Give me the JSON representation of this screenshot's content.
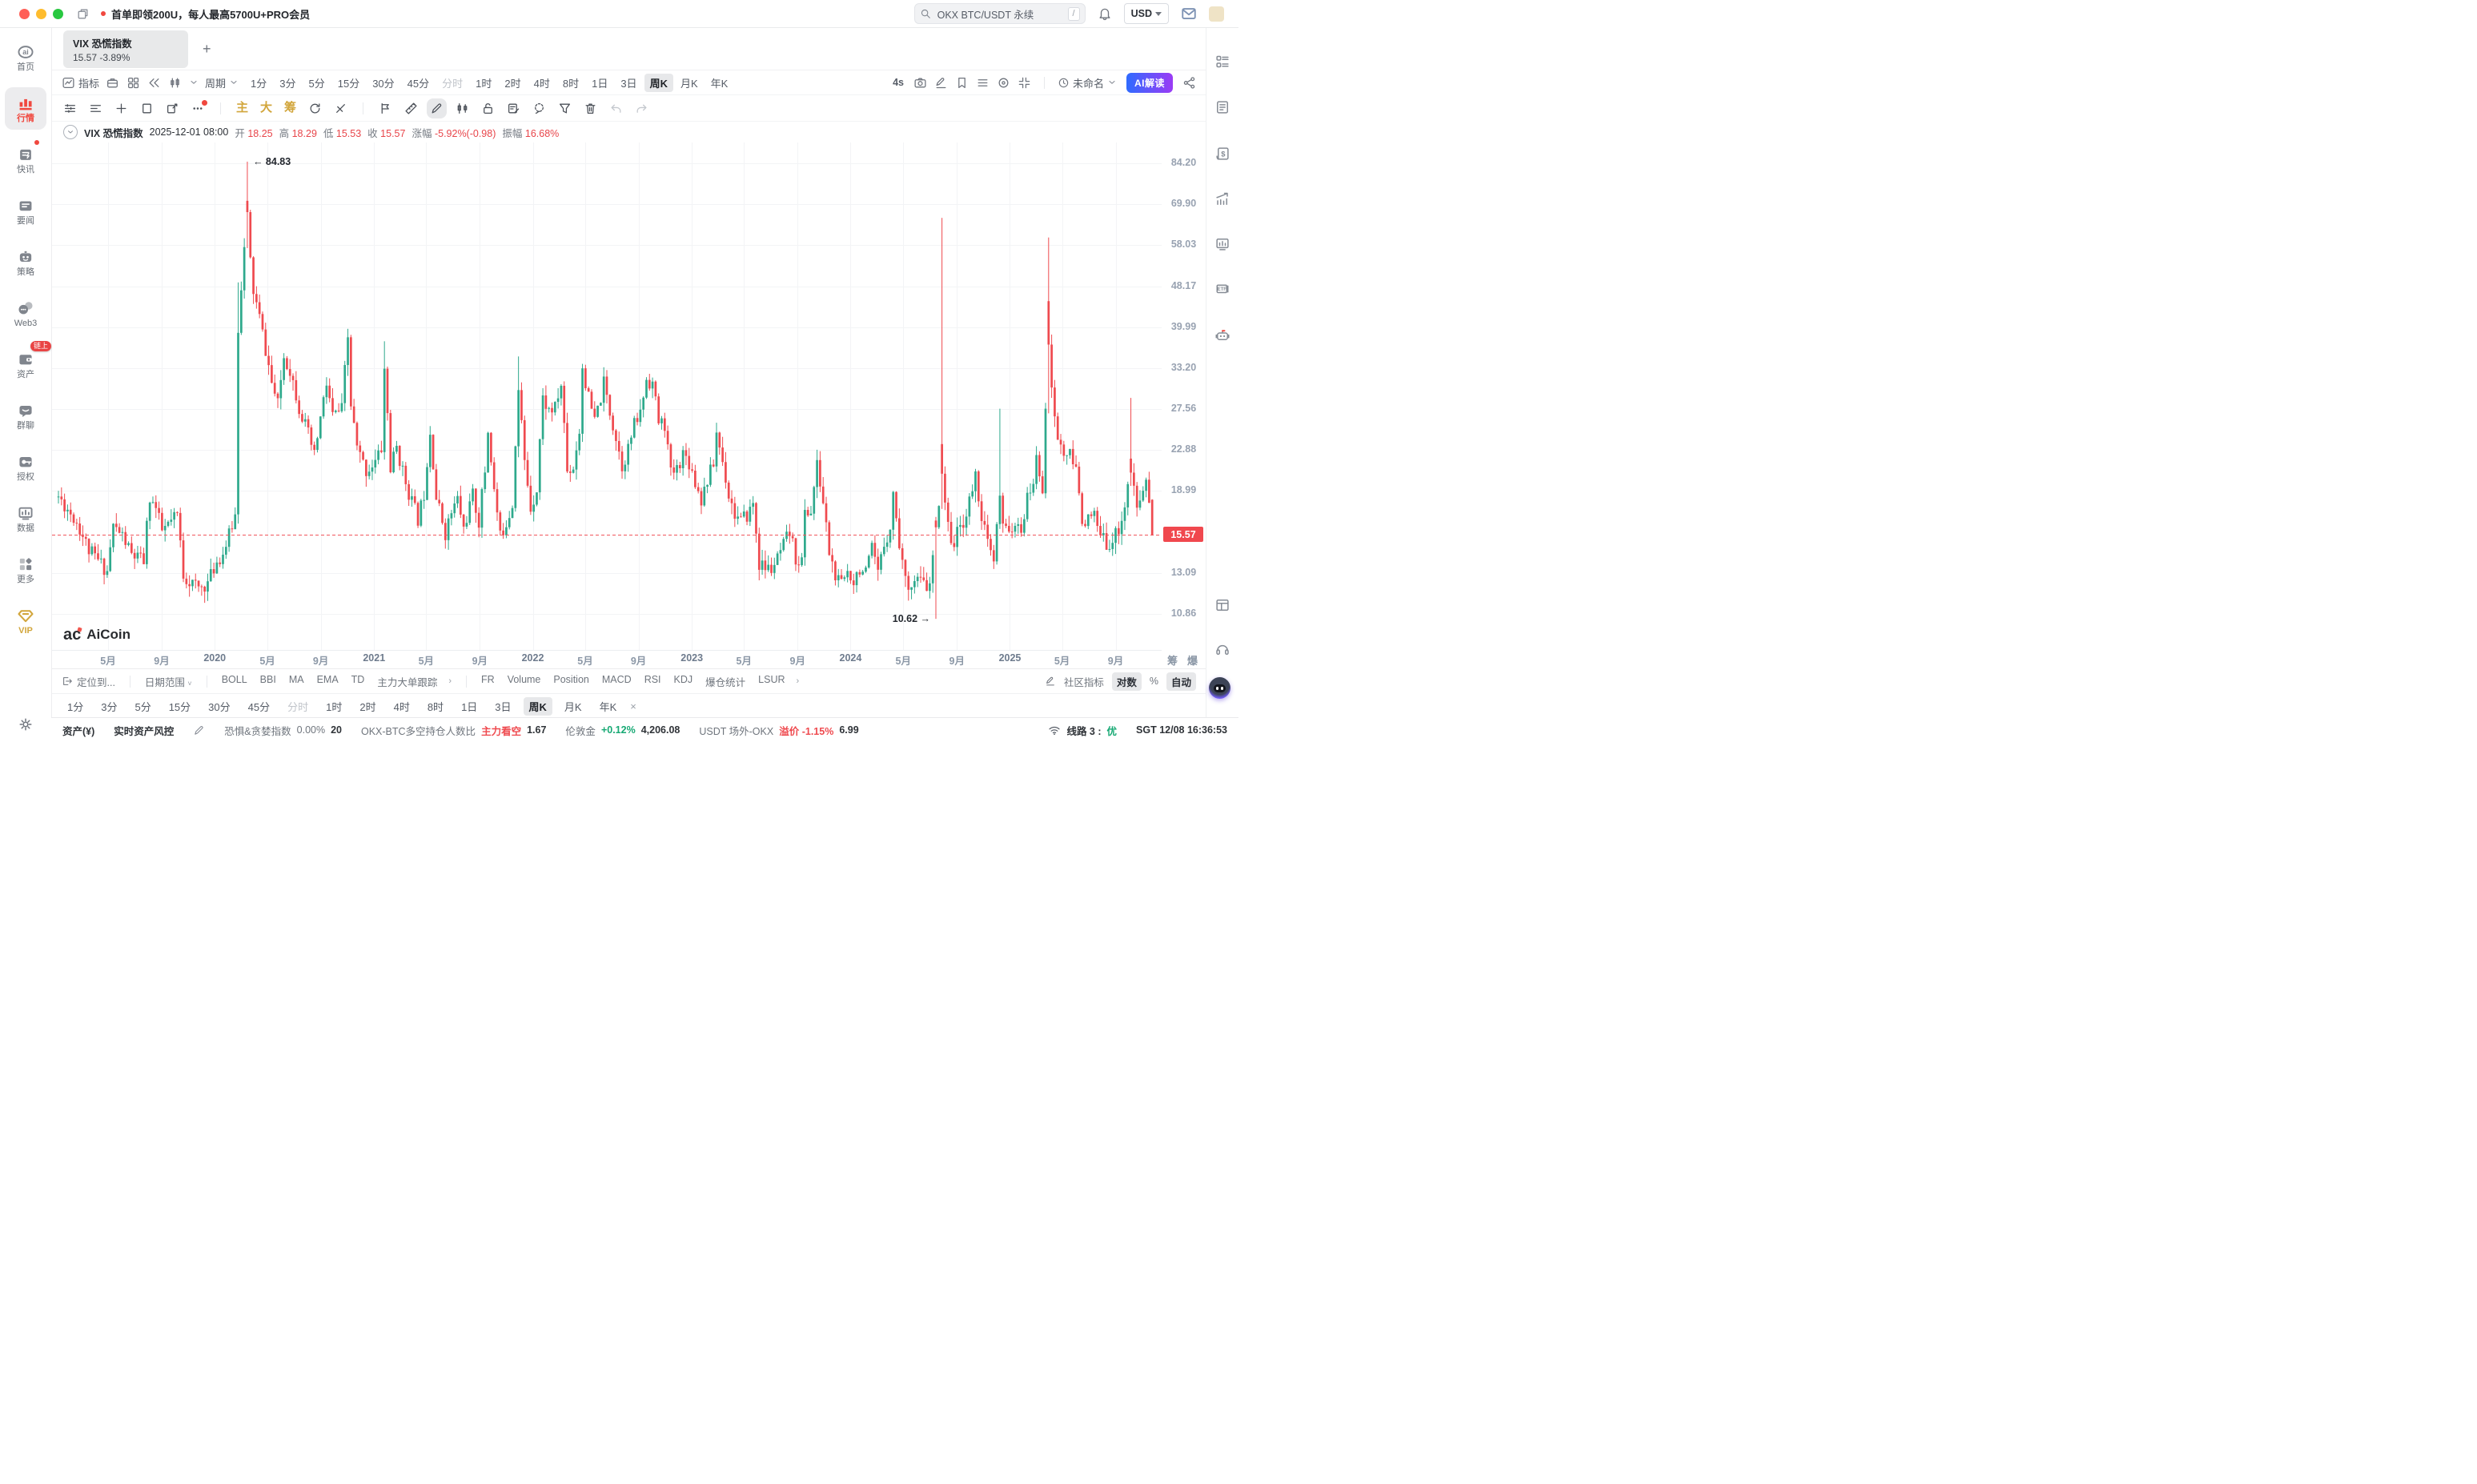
{
  "titlebar": {
    "promo": "首单即领200U，每人最高5700U+PRO会员",
    "search_value": "OKX BTC/USDT 永续",
    "search_shortcut": "/",
    "currency": "USD"
  },
  "sidebar": {
    "items": [
      {
        "label": "首页",
        "icon": "home-logo"
      },
      {
        "label": "行情",
        "icon": "market-bars",
        "active": true
      },
      {
        "label": "快讯",
        "icon": "flash-news",
        "dot": true
      },
      {
        "label": "要闻",
        "icon": "major-news"
      },
      {
        "label": "策略",
        "icon": "strategy-bot"
      },
      {
        "label": "Web3",
        "icon": "web3"
      },
      {
        "label": "资产",
        "icon": "wallet",
        "badge": "链上"
      },
      {
        "label": "群聊",
        "icon": "group-chat"
      },
      {
        "label": "授权",
        "icon": "auth-key"
      },
      {
        "label": "数据",
        "icon": "data-monitor"
      },
      {
        "label": "更多",
        "icon": "more-grid"
      },
      {
        "label": "VIP",
        "icon": "vip-diamond",
        "gold": true
      }
    ]
  },
  "tab": {
    "title": "VIX 恐慌指数",
    "price": "15.57",
    "change": "-3.89%"
  },
  "toolbar_top": {
    "indicator_label": "指标",
    "left_icons": [
      "briefcase",
      "layout",
      "rewind",
      "candle-style"
    ],
    "period_label": "周期",
    "periods": [
      "1分",
      "3分",
      "5分",
      "15分",
      "30分",
      "45分",
      "分时",
      "1时",
      "2时",
      "4时",
      "8时",
      "1日",
      "3日",
      "周K",
      "月K",
      "年K"
    ],
    "active_period": "周K",
    "disabled_period": "分时",
    "speed": "4s",
    "mid_icons": [
      "camera",
      "pencil-line",
      "tag",
      "list",
      "target",
      "shrink"
    ],
    "layout_name": "未命名",
    "ai_label": "AI解读"
  },
  "toolbar_draw": {
    "icons": [
      {
        "icon": "ma-lines"
      },
      {
        "icon": "ma-lines2"
      },
      {
        "icon": "plus"
      },
      {
        "icon": "rect-tool"
      },
      {
        "icon": "draw-edit"
      },
      {
        "icon": "dots",
        "red": true,
        "sep_after": true
      },
      {
        "text": "主"
      },
      {
        "text": "大"
      },
      {
        "text": "筹"
      },
      {
        "icon": "refresh-k"
      },
      {
        "icon": "strike",
        "sep_after": true
      },
      {
        "icon": "flag-mark"
      },
      {
        "icon": "ruler"
      },
      {
        "icon": "pencil",
        "active": true
      },
      {
        "icon": "candles-sm"
      },
      {
        "icon": "lock-open"
      },
      {
        "icon": "note-edit"
      },
      {
        "icon": "lasso"
      },
      {
        "icon": "funnel"
      },
      {
        "icon": "trash"
      },
      {
        "icon": "undo",
        "dim": true
      },
      {
        "icon": "redo",
        "dim": true
      }
    ]
  },
  "infoline": {
    "name": "VIX 恐慌指数",
    "time": "2025-12-01 08:00",
    "o_label": "开",
    "o": "18.25",
    "h_label": "高",
    "h": "18.29",
    "l_label": "低",
    "l": "15.53",
    "c_label": "收",
    "c": "15.57",
    "chg_label": "涨幅",
    "chg": "-5.92%(-0.98)",
    "amp_label": "振幅",
    "amp": "16.68%"
  },
  "chart_data": {
    "type": "candlestick",
    "symbol": "VIX 恐慌指数",
    "period": "周K",
    "scale": "log",
    "weeks": 360,
    "seed": 11,
    "up_color": "#2ea98c",
    "down_color": "#ef4a4f",
    "grid_color": "#f3f4f6",
    "price_line_color": "#f0565c",
    "current_price": 15.57,
    "current_price_label": "15.57",
    "y_ticks": [
      {
        "label": "84.20",
        "value": 84.2
      },
      {
        "label": "69.90",
        "value": 69.9
      },
      {
        "label": "58.03",
        "value": 58.03
      },
      {
        "label": "48.17",
        "value": 48.17
      },
      {
        "label": "39.99",
        "value": 39.99
      },
      {
        "label": "33.20",
        "value": 33.2
      },
      {
        "label": "27.56",
        "value": 27.56
      },
      {
        "label": "22.88",
        "value": 22.88
      },
      {
        "label": "18.99",
        "value": 18.99
      },
      {
        "label": "13.09",
        "value": 13.09
      },
      {
        "label": "10.86",
        "value": 10.86
      }
    ],
    "x_ticks": [
      {
        "label": "5月",
        "week": 16.3
      },
      {
        "label": "9月",
        "week": 33.9
      },
      {
        "label": "2020",
        "week": 51.3,
        "year": true
      },
      {
        "label": "5月",
        "week": 68.6
      },
      {
        "label": "9月",
        "week": 86.1
      },
      {
        "label": "2021",
        "week": 103.6,
        "year": true
      },
      {
        "label": "5月",
        "week": 120.7
      },
      {
        "label": "9月",
        "week": 138.3
      },
      {
        "label": "2022",
        "week": 155.7,
        "year": true
      },
      {
        "label": "5月",
        "week": 172.9
      },
      {
        "label": "9月",
        "week": 190.4
      },
      {
        "label": "2023",
        "week": 207.9,
        "year": true
      },
      {
        "label": "5月",
        "week": 225.0
      },
      {
        "label": "9月",
        "week": 242.6
      },
      {
        "label": "2024",
        "week": 260.0,
        "year": true
      },
      {
        "label": "5月",
        "week": 277.3
      },
      {
        "label": "9月",
        "week": 294.9
      },
      {
        "label": "2025",
        "week": 312.3,
        "year": true
      },
      {
        "label": "5月",
        "week": 329.4
      },
      {
        "label": "9月",
        "week": 347.0
      }
    ],
    "annotations": [
      {
        "text": "← 84.83",
        "week": 62,
        "value": 84.83,
        "align": "left"
      },
      {
        "text": "10.62 →",
        "week": 288,
        "value": 10.62,
        "align": "right"
      }
    ],
    "series_anchors": [
      [
        0,
        18.5
      ],
      [
        6,
        16.5
      ],
      [
        10,
        14.5
      ],
      [
        16,
        13.2
      ],
      [
        18,
        16.2
      ],
      [
        21,
        15.5
      ],
      [
        24,
        14.2
      ],
      [
        28,
        13.8
      ],
      [
        30,
        18.5
      ],
      [
        32,
        17.5
      ],
      [
        34,
        15.8
      ],
      [
        37,
        16.5
      ],
      [
        39,
        17
      ],
      [
        41,
        13
      ],
      [
        43,
        12.6
      ],
      [
        46,
        12.2
      ],
      [
        49,
        12.5
      ],
      [
        52,
        13.8
      ],
      [
        54,
        14.3
      ],
      [
        56,
        15.5
      ],
      [
        58,
        17
      ],
      [
        59,
        40
      ],
      [
        61,
        57
      ],
      [
        62,
        66
      ],
      [
        63,
        54
      ],
      [
        64,
        47
      ],
      [
        66,
        41.7
      ],
      [
        68,
        36
      ],
      [
        70,
        31
      ],
      [
        72,
        28
      ],
      [
        74,
        35
      ],
      [
        76,
        33
      ],
      [
        79,
        27.8
      ],
      [
        82,
        24.5
      ],
      [
        84,
        22.2
      ],
      [
        86,
        26.4
      ],
      [
        88,
        30.8
      ],
      [
        90,
        26.7
      ],
      [
        93,
        27.5
      ],
      [
        95,
        38
      ],
      [
        96,
        28
      ],
      [
        98,
        23
      ],
      [
        101,
        20.8
      ],
      [
        104,
        21.7
      ],
      [
        106,
        23
      ],
      [
        107,
        33
      ],
      [
        109,
        21
      ],
      [
        111,
        23.2
      ],
      [
        113,
        20.7
      ],
      [
        115,
        18.9
      ],
      [
        118,
        16.7
      ],
      [
        120,
        18.8
      ],
      [
        122,
        25
      ],
      [
        124,
        18.4
      ],
      [
        127,
        15.7
      ],
      [
        129,
        17.2
      ],
      [
        131,
        18.3
      ],
      [
        133,
        16
      ],
      [
        136,
        18.6
      ],
      [
        138,
        16.5
      ],
      [
        140,
        20.8
      ],
      [
        141,
        25
      ],
      [
        143,
        19
      ],
      [
        145,
        15.4
      ],
      [
        147,
        16.5
      ],
      [
        149,
        17.9
      ],
      [
        151,
        30
      ],
      [
        153,
        21.6
      ],
      [
        155,
        17.6
      ],
      [
        157,
        19.2
      ],
      [
        159,
        28.9
      ],
      [
        161,
        27.4
      ],
      [
        163,
        27.6
      ],
      [
        165,
        30.7
      ],
      [
        167,
        20.8
      ],
      [
        169,
        21.2
      ],
      [
        171,
        25
      ],
      [
        172,
        33.4
      ],
      [
        174,
        28.9
      ],
      [
        176,
        26
      ],
      [
        178,
        29
      ],
      [
        179,
        31
      ],
      [
        181,
        27.2
      ],
      [
        183,
        24.2
      ],
      [
        185,
        21.3
      ],
      [
        187,
        23
      ],
      [
        189,
        25.6
      ],
      [
        191,
        27
      ],
      [
        193,
        31.6
      ],
      [
        195,
        31
      ],
      [
        197,
        26
      ],
      [
        199,
        25.7
      ],
      [
        201,
        20.5
      ],
      [
        203,
        21
      ],
      [
        205,
        22.6
      ],
      [
        207,
        21.7
      ],
      [
        209,
        19.8
      ],
      [
        211,
        18.3
      ],
      [
        213,
        20
      ],
      [
        215,
        21.5
      ],
      [
        216,
        24.8
      ],
      [
        218,
        21.7
      ],
      [
        220,
        18.7
      ],
      [
        222,
        17.1
      ],
      [
        224,
        16.5
      ],
      [
        226,
        17
      ],
      [
        228,
        17.9
      ],
      [
        230,
        13.6
      ],
      [
        232,
        13.4
      ],
      [
        234,
        13.3
      ],
      [
        236,
        13.9
      ],
      [
        238,
        14.8
      ],
      [
        240,
        15.7
      ],
      [
        242,
        14
      ],
      [
        244,
        13.8
      ],
      [
        245,
        17.2
      ],
      [
        247,
        17.3
      ],
      [
        249,
        21.3
      ],
      [
        251,
        18
      ],
      [
        253,
        14.4
      ],
      [
        255,
        12.8
      ],
      [
        257,
        12.4
      ],
      [
        259,
        13.2
      ],
      [
        261,
        12.7
      ],
      [
        263,
        13.4
      ],
      [
        265,
        13
      ],
      [
        267,
        14.5
      ],
      [
        269,
        13
      ],
      [
        271,
        14.9
      ],
      [
        273,
        16.2
      ],
      [
        274,
        18.7
      ],
      [
        276,
        15
      ],
      [
        278,
        12.6
      ],
      [
        280,
        12.5
      ],
      [
        282,
        12.7
      ],
      [
        284,
        12.4
      ],
      [
        286,
        12.2
      ],
      [
        288,
        16
      ],
      [
        290,
        20.7
      ],
      [
        292,
        16
      ],
      [
        294,
        15
      ],
      [
        296,
        16.2
      ],
      [
        298,
        17
      ],
      [
        300,
        19.2
      ],
      [
        301,
        20.3
      ],
      [
        303,
        17
      ],
      [
        305,
        14.9
      ],
      [
        307,
        13.7
      ],
      [
        309,
        18.4
      ],
      [
        310,
        16
      ],
      [
        312,
        16.2
      ],
      [
        314,
        15.8
      ],
      [
        316,
        16
      ],
      [
        318,
        18.2
      ],
      [
        320,
        19.9
      ],
      [
        321,
        21.8
      ],
      [
        323,
        19.3
      ],
      [
        325,
        37.5
      ],
      [
        326,
        29.6
      ],
      [
        328,
        24
      ],
      [
        330,
        22.5
      ],
      [
        332,
        22.3
      ],
      [
        334,
        20.8
      ],
      [
        336,
        16.8
      ],
      [
        338,
        16.6
      ],
      [
        340,
        16.9
      ],
      [
        342,
        15.4
      ],
      [
        344,
        15
      ],
      [
        346,
        15.2
      ],
      [
        348,
        16
      ],
      [
        350,
        17.8
      ],
      [
        352,
        20.8
      ],
      [
        354,
        17.4
      ],
      [
        356,
        19.1
      ],
      [
        357,
        20
      ],
      [
        358,
        18.25
      ],
      [
        359,
        15.57
      ]
    ],
    "wick_overrides": {
      "59": {
        "high": 49
      },
      "62": {
        "open": 71,
        "high": 84.83
      },
      "107": {
        "high": 37.5
      },
      "151": {
        "high": 35
      },
      "288": {
        "open": 16.6,
        "close": 16.1,
        "low": 10.62
      },
      "290": {
        "open": 23.5,
        "high": 65.7
      },
      "309": {
        "high": 27.6
      },
      "325": {
        "open": 45,
        "high": 60.1
      },
      "352": {
        "open": 22,
        "high": 28.99
      }
    },
    "last_bar": {
      "week": 359,
      "open": 18.25,
      "high": 18.29,
      "low": 15.53,
      "close": 15.57
    }
  },
  "watermark": {
    "text": "AiCoin"
  },
  "axis_extra": [
    "筹",
    "爆"
  ],
  "rail_icons": [
    "list-layout",
    "news-doc",
    "finance-doc",
    "trend-up",
    "monitor-chart",
    "etf",
    "ai-robot",
    "split-panel",
    "headset"
  ],
  "bottom_a": {
    "locate": "定位到...",
    "date_range": "日期范围",
    "main_inds": [
      "BOLL",
      "BBI",
      "MA",
      "EMA",
      "TD",
      "主力大单跟踪"
    ],
    "sub_inds": [
      "FR",
      "Volume",
      "Position",
      "MACD",
      "RSI",
      "KDJ",
      "爆仓统计",
      "LSUR"
    ],
    "community": "社区指标",
    "log_label": "对数",
    "pct_label": "%",
    "auto_label": "自动"
  },
  "bottom_b": {
    "active": "周K",
    "close": "×"
  },
  "statusbar": {
    "asset_label": "资产(¥)",
    "risk_label": "实时资产风控",
    "fear_label": "恐惧&贪婪指数",
    "fear_pct": "0.00%",
    "fear_val": "20",
    "ls_label": "OKX-BTC多空持仓人数比",
    "ls_tag": "主力看空",
    "ls_val": "1.67",
    "gold_label": "伦敦金",
    "gold_chg": "+0.12%",
    "gold_val": "4,206.08",
    "usdt_label": "USDT 场外-OKX",
    "premium_label": "溢价",
    "premium_chg": "-1.15%",
    "premium_val": "6.99",
    "line_label": "线路 3 :",
    "line_status": "优",
    "clock": "SGT 12/08 16:36:53"
  }
}
